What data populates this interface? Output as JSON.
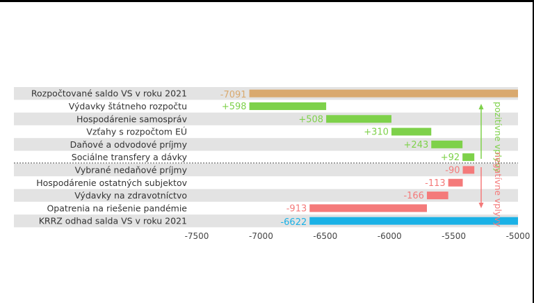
{
  "colors": {
    "start": "#d9a96e",
    "positive": "#7ed14a",
    "negative": "#f47a7a",
    "end": "#1ab1e6",
    "band": "#e3e3e3",
    "arrow_positive": "#7ed14a",
    "arrow_negative": "#f47a7a"
  },
  "chart_data": {
    "type": "bar",
    "subtype": "horizontal waterfall",
    "categories": [
      "Rozpočtované saldo VS v roku 2021",
      "Výdavky štátneho rozpočtu",
      "Hospodárenie samospráv",
      "Vzťahy s rozpočtom EÚ",
      "Daňové a odvodové príjmy",
      "Sociálne transfery a dávky",
      "Vybrané nedaňové príjmy",
      "Hospodárenie ostatných subjektov",
      "Výdavky na zdravotníctvo",
      "Opatrenia na riešenie pandémie",
      "KRRZ odhad salda VS v roku 2021"
    ],
    "values": [
      -7091,
      598,
      508,
      310,
      243,
      92,
      -90,
      -113,
      -166,
      -913,
      -6622
    ],
    "value_labels": [
      "-7091",
      "+598",
      "+508",
      "+310",
      "+243",
      "+92",
      "-90",
      "-113",
      "-166",
      "-913",
      "-6622"
    ],
    "bar_kinds": [
      "start",
      "positive",
      "positive",
      "positive",
      "positive",
      "positive",
      "negative",
      "negative",
      "negative",
      "negative",
      "end"
    ],
    "xlim": [
      -7500,
      -5000
    ],
    "xticks": [
      -7500,
      -7000,
      -6500,
      -6000,
      -5500,
      -5000
    ],
    "tick_labels": [
      "-7500",
      "-7000",
      "-6500",
      "-6000",
      "-5500",
      "-5000"
    ],
    "grid": false,
    "group_labels": {
      "positive": "pozitívne vplyvy",
      "negative": "negatívne vplyvy"
    },
    "xlabel": "",
    "ylabel": "",
    "title": ""
  }
}
